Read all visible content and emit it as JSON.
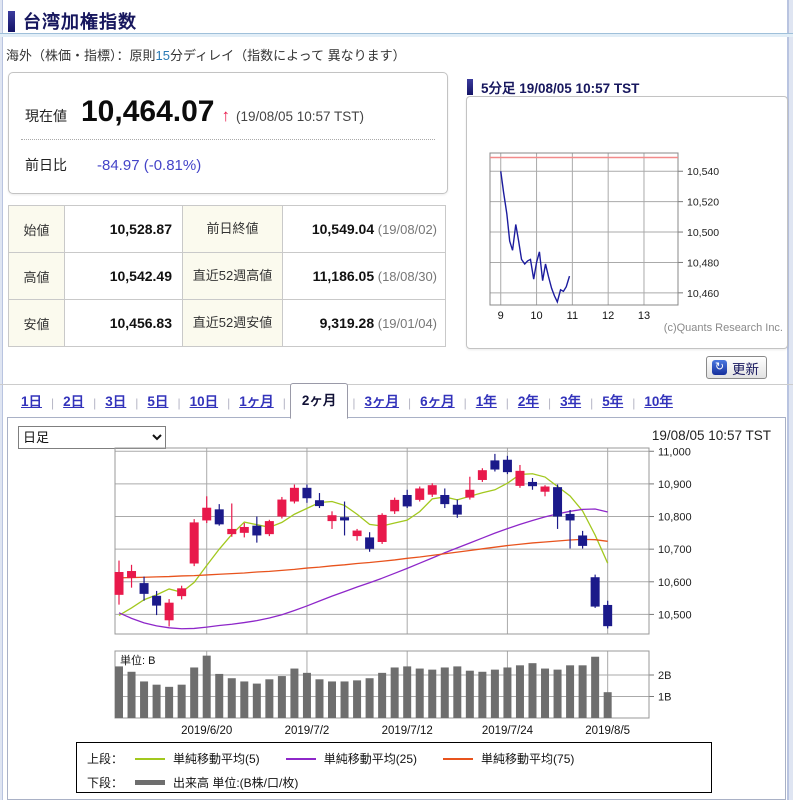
{
  "page": {
    "title": "台湾加権指数",
    "subtitle_pre": "海外（株価・指標）：原則",
    "subtitle_num": "15",
    "subtitle_post": "分ディレイ（指数によって 異なります）"
  },
  "quote": {
    "label": "現在値",
    "value": "10,464.07",
    "arrow": "↑",
    "timestamp": "(19/08/05 10:57 TST)",
    "change_label": "前日比",
    "change_value": "-84.97 (-0.81%)"
  },
  "stats_table": {
    "rows": [
      {
        "label": "始値",
        "value": "10,528.87",
        "label2": "前日終値",
        "value2": "10,549.04",
        "date2": " (19/08/02)"
      },
      {
        "label": "高値",
        "value": "10,542.49",
        "label2": "直近52週高値",
        "value2": "11,186.05",
        "date2": " (18/08/30)"
      },
      {
        "label": "安値",
        "value": "10,456.83",
        "label2": "直近52週安値",
        "value2": "9,319.28",
        "date2": " (19/01/04)"
      }
    ]
  },
  "intraday_panel": {
    "title": "5分足 19/08/05 10:57 TST",
    "copyright": "(c)Quants Research Inc.",
    "refresh_label": "更新",
    "refresh_icon_glyph": "↻"
  },
  "period_tabs": [
    "1日",
    "2日",
    "3日",
    "5日",
    "10日",
    "1ヶ月",
    "2ヶ月",
    "3ヶ月",
    "6ヶ月",
    "1年",
    "2年",
    "3年",
    "5年",
    "10年"
  ],
  "period_tabs_active": "2ヶ月",
  "chart_controls": {
    "interval_selected": "日足",
    "timestamp": "19/08/05 10:57 TST"
  },
  "legend": {
    "row1_label": "上段：",
    "row2_label": "下段：",
    "ma_items": [
      {
        "label": "単純移動平均(5)",
        "color": "#a2c81e"
      },
      {
        "label": "単純移動平均(25)",
        "color": "#8e27c9"
      },
      {
        "label": "単純移動平均(75)",
        "color": "#e8531d"
      }
    ],
    "volume_item": {
      "label": "出来高 単位:(B株/口/枚)",
      "color": "#6e6e6e"
    }
  },
  "chart_data": [
    {
      "type": "line",
      "title": "5分足 19/08/05 10:57 TST",
      "x_unit": "hour (TST)",
      "x": [
        9.0,
        9.08,
        9.17,
        9.25,
        9.33,
        9.42,
        9.5,
        9.58,
        9.67,
        9.75,
        9.83,
        9.92,
        10.0,
        10.08,
        10.17,
        10.25,
        10.33,
        10.42,
        10.5,
        10.58,
        10.67,
        10.75,
        10.83,
        10.92
      ],
      "values": [
        10540,
        10526,
        10512,
        10494,
        10488,
        10505,
        10494,
        10482,
        10479,
        10481,
        10482,
        10469,
        10480,
        10487,
        10468,
        10479,
        10471,
        10463,
        10458,
        10454,
        10462,
        10461,
        10464,
        10471
      ],
      "prev_close_line": 10549.04,
      "x_ticks": [
        9,
        10,
        11,
        12,
        13
      ],
      "y_ticks": [
        10460,
        10480,
        10500,
        10520,
        10540
      ],
      "xlim": [
        8.7,
        13.95
      ],
      "ylim": [
        10452,
        10552
      ],
      "grid": true,
      "line_color": "#1c1c9e",
      "prev_close_color": "#f28b8b"
    },
    {
      "type": "candlestick",
      "title": "台湾加権指数 日足 2ヶ月",
      "dates": [
        "2019/6/11",
        "2019/6/12",
        "2019/6/13",
        "2019/6/14",
        "2019/6/17",
        "2019/6/18",
        "2019/6/19",
        "2019/6/20",
        "2019/6/21",
        "2019/6/24",
        "2019/6/25",
        "2019/6/26",
        "2019/6/27",
        "2019/6/28",
        "2019/7/1",
        "2019/7/2",
        "2019/7/3",
        "2019/7/4",
        "2019/7/5",
        "2019/7/8",
        "2019/7/9",
        "2019/7/10",
        "2019/7/11",
        "2019/7/12",
        "2019/7/15",
        "2019/7/16",
        "2019/7/17",
        "2019/7/18",
        "2019/7/19",
        "2019/7/22",
        "2019/7/23",
        "2019/7/24",
        "2019/7/25",
        "2019/7/26",
        "2019/7/29",
        "2019/7/30",
        "2019/7/31",
        "2019/8/1",
        "2019/8/2",
        "2019/8/5"
      ],
      "open": [
        10560,
        10612,
        10596,
        10557,
        10482,
        10556,
        10656,
        10788,
        10822,
        10746,
        10750,
        10772,
        10746,
        10800,
        10846,
        10888,
        10850,
        10786,
        10798,
        10740,
        10736,
        10722,
        10816,
        10866,
        10851,
        10867,
        10866,
        10836,
        10858,
        10912,
        10972,
        10974,
        10894,
        10906,
        10876,
        10890,
        10808,
        10742,
        10614,
        10529
      ],
      "high": [
        10665,
        10652,
        10616,
        10572,
        10547,
        10588,
        10792,
        10862,
        10838,
        10840,
        10780,
        10800,
        10790,
        10860,
        10898,
        10898,
        10872,
        10816,
        10846,
        10762,
        10752,
        10810,
        10858,
        10882,
        10892,
        10902,
        10886,
        10852,
        10922,
        10948,
        10992,
        10986,
        10958,
        10918,
        10896,
        10898,
        10820,
        10756,
        10622,
        10542
      ],
      "low": [
        10530,
        10582,
        10542,
        10498,
        10463,
        10546,
        10648,
        10780,
        10772,
        10738,
        10736,
        10720,
        10740,
        10794,
        10840,
        10842,
        10826,
        10762,
        10742,
        10726,
        10692,
        10716,
        10808,
        10826,
        10846,
        10860,
        10826,
        10796,
        10852,
        10906,
        10938,
        10930,
        10888,
        10882,
        10862,
        10762,
        10702,
        10702,
        10520,
        10457
      ],
      "close": [
        10630,
        10633,
        10563,
        10527,
        10536,
        10580,
        10782,
        10827,
        10776,
        10762,
        10768,
        10742,
        10786,
        10852,
        10888,
        10856,
        10832,
        10804,
        10788,
        10757,
        10701,
        10805,
        10851,
        10831,
        10886,
        10896,
        10838,
        10806,
        10882,
        10942,
        10944,
        10936,
        10940,
        10893,
        10892,
        10800,
        10788,
        10710,
        10524,
        10464
      ],
      "volume_B": [
        2.4,
        2.15,
        1.7,
        1.55,
        1.45,
        1.55,
        2.35,
        2.9,
        2.05,
        1.85,
        1.7,
        1.6,
        1.8,
        1.95,
        2.3,
        2.1,
        1.8,
        1.7,
        1.7,
        1.75,
        1.85,
        2.1,
        2.35,
        2.4,
        2.3,
        2.25,
        2.35,
        2.4,
        2.2,
        2.15,
        2.25,
        2.35,
        2.45,
        2.55,
        2.3,
        2.25,
        2.45,
        2.45,
        2.85,
        1.2
      ],
      "ma5": [
        10497,
        10520,
        10545,
        10560,
        10578,
        10568,
        10598,
        10650,
        10700,
        10745,
        10783,
        10775,
        10767,
        10782,
        10807,
        10825,
        10843,
        10846,
        10834,
        10807,
        10776,
        10771,
        10780,
        10789,
        10815,
        10854,
        10860,
        10851,
        10862,
        10873,
        10882,
        10902,
        10929,
        10931,
        10921,
        10892,
        10863,
        10817,
        10743,
        10657
      ],
      "ma25": [
        10505,
        10488,
        10474,
        10465,
        10459,
        10456,
        10457,
        10461,
        10466,
        10470,
        10475,
        10481,
        10489,
        10499,
        10512,
        10526,
        10541,
        10556,
        10570,
        10584,
        10597,
        10611,
        10626,
        10641,
        10657,
        10673,
        10689,
        10704,
        10719,
        10734,
        10749,
        10763,
        10776,
        10788,
        10799,
        10808,
        10816,
        10822,
        10823,
        10814
      ],
      "ma75": [
        10612,
        10613,
        10614,
        10615,
        10616,
        10618,
        10619,
        10621,
        10623,
        10625,
        10627,
        10630,
        10632,
        10635,
        10638,
        10642,
        10645,
        10649,
        10652,
        10656,
        10659,
        10663,
        10667,
        10672,
        10676,
        10681,
        10686,
        10691,
        10696,
        10701,
        10706,
        10711,
        10715,
        10719,
        10722,
        10725,
        10728,
        10730,
        10729,
        10724
      ],
      "y_ticks": [
        10500,
        10600,
        10700,
        10800,
        10900,
        11000
      ],
      "ylim": [
        10440,
        11010
      ],
      "x_tick_labels": [
        {
          "index": 7,
          "label": "2019/6/20"
        },
        {
          "index": 15,
          "label": "2019/7/2"
        },
        {
          "index": 23,
          "label": "2019/7/12"
        },
        {
          "index": 31,
          "label": "2019/7/24"
        },
        {
          "index": 39,
          "label": "2019/8/5"
        }
      ],
      "volume_unit_label": "単位: B",
      "volume_y_ticks": [
        {
          "value": 1,
          "label": "1B"
        },
        {
          "value": 2,
          "label": "2B"
        }
      ],
      "colors": {
        "up": "#e8194b",
        "down": "#1b1a8a",
        "ma5": "#a2c81e",
        "ma25": "#8e27c9",
        "ma75": "#e8531d",
        "volume": "#6e6e6e",
        "grid": "#a0a0a0"
      }
    }
  ]
}
